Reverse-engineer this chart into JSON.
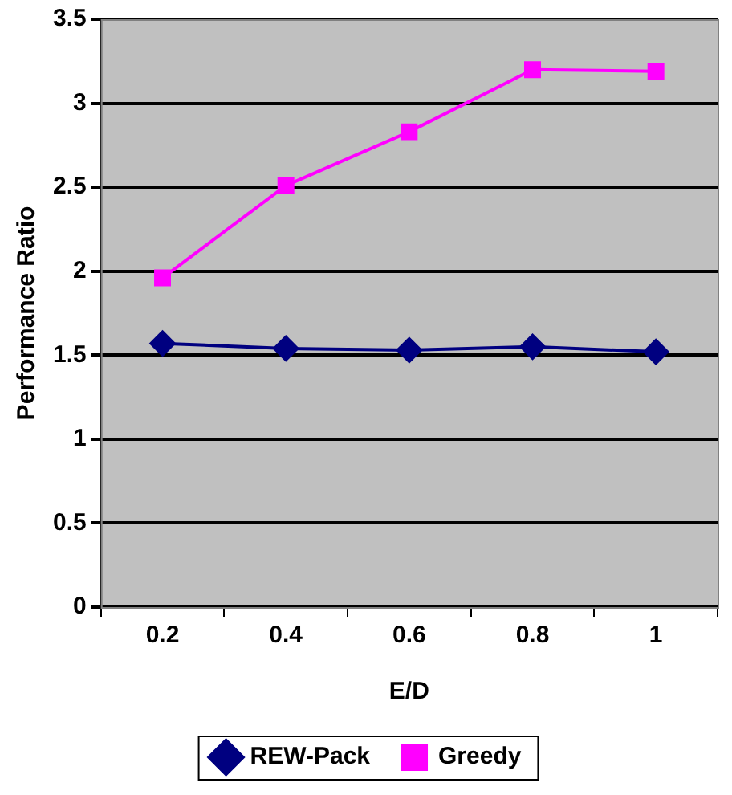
{
  "chart_data": {
    "type": "line",
    "xlabel": "E/D",
    "ylabel": "Performance Ratio",
    "categories": [
      "0.2",
      "0.4",
      "0.6",
      "0.8",
      "1"
    ],
    "series": [
      {
        "name": "REW-Pack",
        "color": "#000080",
        "marker": "diamond",
        "values": [
          1.57,
          1.54,
          1.53,
          1.55,
          1.52
        ]
      },
      {
        "name": "Greedy",
        "color": "#ff00ff",
        "marker": "square",
        "values": [
          1.96,
          2.51,
          2.83,
          3.2,
          3.19
        ]
      }
    ],
    "ylim": [
      0,
      3.5
    ],
    "yticks": [
      0,
      0.5,
      1,
      1.5,
      2,
      2.5,
      3,
      3.5
    ],
    "grid": "y",
    "legend": "bottom"
  }
}
